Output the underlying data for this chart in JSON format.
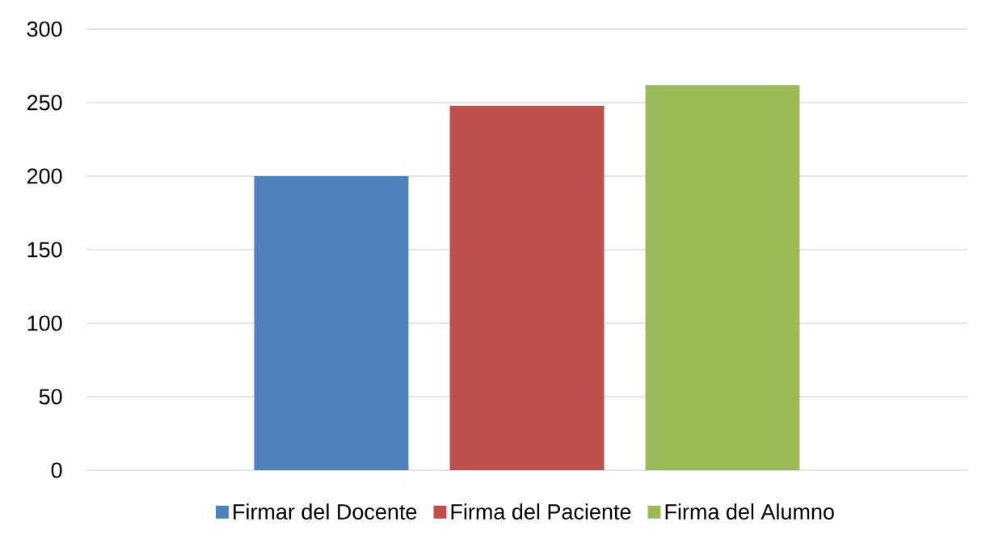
{
  "chart_data": {
    "type": "bar",
    "categories": [
      null
    ],
    "series": [
      {
        "name": "Firmar del Docente",
        "color": "#4f81bd",
        "values": [
          200
        ]
      },
      {
        "name": "Firma del Paciente",
        "color": "#c0504d",
        "values": [
          248
        ]
      },
      {
        "name": "Firma del Alumno",
        "color": "#9bbb59",
        "values": [
          262
        ]
      }
    ],
    "ylim": [
      0,
      300
    ],
    "yticks": [
      0,
      50,
      100,
      150,
      200,
      250,
      300
    ],
    "grid": "y",
    "legend": "bottom"
  }
}
